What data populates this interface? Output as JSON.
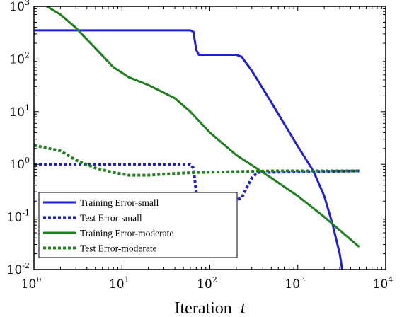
{
  "chart_data": {
    "type": "line",
    "title": "",
    "xlabel": "Iteration",
    "xlabel_var": "t",
    "ylabel": "",
    "xscale": "log",
    "yscale": "log",
    "xlim": [
      1,
      10000
    ],
    "ylim": [
      0.01,
      1000
    ],
    "x_ticks": [
      {
        "value": 1,
        "base": "10",
        "exp": "0"
      },
      {
        "value": 10,
        "base": "10",
        "exp": "1"
      },
      {
        "value": 100,
        "base": "10",
        "exp": "2"
      },
      {
        "value": 1000,
        "base": "10",
        "exp": "3"
      },
      {
        "value": 10000,
        "base": "10",
        "exp": "4"
      }
    ],
    "y_ticks": [
      {
        "value": 0.01,
        "base": "10",
        "exp": "-2"
      },
      {
        "value": 0.1,
        "base": "10",
        "exp": "-1"
      },
      {
        "value": 1,
        "base": "10",
        "exp": "0"
      },
      {
        "value": 10,
        "base": "10",
        "exp": "1"
      },
      {
        "value": 100,
        "base": "10",
        "exp": "2"
      },
      {
        "value": 1000,
        "base": "10",
        "exp": "3"
      }
    ],
    "grid": false,
    "legend_position": "bottom-left",
    "series": [
      {
        "name": "Training Error-small",
        "color": "#1f1fdb",
        "style": "solid",
        "points": [
          [
            1,
            350
          ],
          [
            60,
            350
          ],
          [
            65,
            330
          ],
          [
            70,
            150
          ],
          [
            75,
            120
          ],
          [
            200,
            120
          ],
          [
            230,
            110
          ],
          [
            300,
            60
          ],
          [
            500,
            15
          ],
          [
            1000,
            2.2
          ],
          [
            1500,
            0.75
          ],
          [
            2000,
            0.25
          ],
          [
            2500,
            0.07
          ],
          [
            3000,
            0.02
          ],
          [
            3200,
            0.01
          ]
        ]
      },
      {
        "name": "Test Error-small",
        "color": "#1f1fdb",
        "style": "dotted",
        "points": [
          [
            1,
            1.0
          ],
          [
            60,
            1.0
          ],
          [
            65,
            0.85
          ],
          [
            70,
            0.3
          ],
          [
            75,
            0.21
          ],
          [
            200,
            0.21
          ],
          [
            230,
            0.23
          ],
          [
            260,
            0.35
          ],
          [
            300,
            0.55
          ],
          [
            350,
            0.7
          ],
          [
            5000,
            0.75
          ]
        ]
      },
      {
        "name": "Training Error-moderate",
        "color": "#1e7f1e",
        "style": "solid",
        "points": [
          [
            1.4,
            1000
          ],
          [
            2,
            700
          ],
          [
            3,
            390
          ],
          [
            5,
            160
          ],
          [
            8,
            70
          ],
          [
            12,
            45
          ],
          [
            20,
            32
          ],
          [
            40,
            18
          ],
          [
            60,
            10
          ],
          [
            100,
            4
          ],
          [
            200,
            1.5
          ],
          [
            500,
            0.55
          ],
          [
            1000,
            0.25
          ],
          [
            2000,
            0.1
          ],
          [
            5000,
            0.027
          ]
        ]
      },
      {
        "name": "Test Error-moderate",
        "color": "#1e7f1e",
        "style": "dotted",
        "points": [
          [
            1,
            2.3
          ],
          [
            2,
            1.8
          ],
          [
            3,
            1.2
          ],
          [
            5,
            0.85
          ],
          [
            8,
            0.7
          ],
          [
            12,
            0.62
          ],
          [
            20,
            0.62
          ],
          [
            40,
            0.67
          ],
          [
            70,
            0.7
          ],
          [
            150,
            0.72
          ],
          [
            500,
            0.75
          ],
          [
            5000,
            0.75
          ]
        ]
      }
    ]
  }
}
